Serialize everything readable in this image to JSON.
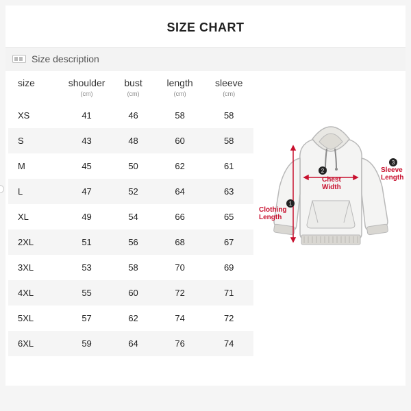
{
  "title": "SIZE CHART",
  "subhead": "Size description",
  "table": {
    "columns": [
      {
        "key": "size",
        "label": "size",
        "unit": ""
      },
      {
        "key": "shoulder",
        "label": "shoulder",
        "unit": "(cm)"
      },
      {
        "key": "bust",
        "label": "bust",
        "unit": "(cm)"
      },
      {
        "key": "length",
        "label": "length",
        "unit": "(cm)"
      },
      {
        "key": "sleeve",
        "label": "sleeve",
        "unit": "(cm)"
      }
    ],
    "rows": [
      {
        "size": "XS",
        "shoulder": "41",
        "bust": "46",
        "length": "58",
        "sleeve": "58"
      },
      {
        "size": "S",
        "shoulder": "43",
        "bust": "48",
        "length": "60",
        "sleeve": "58"
      },
      {
        "size": "M",
        "shoulder": "45",
        "bust": "50",
        "length": "62",
        "sleeve": "61"
      },
      {
        "size": "L",
        "shoulder": "47",
        "bust": "52",
        "length": "64",
        "sleeve": "63"
      },
      {
        "size": "XL",
        "shoulder": "49",
        "bust": "54",
        "length": "66",
        "sleeve": "65"
      },
      {
        "size": "2XL",
        "shoulder": "51",
        "bust": "56",
        "length": "68",
        "sleeve": "67"
      },
      {
        "size": "3XL",
        "shoulder": "53",
        "bust": "58",
        "length": "70",
        "sleeve": "69"
      },
      {
        "size": "4XL",
        "shoulder": "55",
        "bust": "60",
        "length": "72",
        "sleeve": "71"
      },
      {
        "size": "5XL",
        "shoulder": "57",
        "bust": "62",
        "length": "74",
        "sleeve": "72"
      },
      {
        "size": "6XL",
        "shoulder": "59",
        "bust": "64",
        "length": "76",
        "sleeve": "74"
      }
    ],
    "stripe_color": "#f5f5f5",
    "text_color": "#222222"
  },
  "diagram": {
    "labels": {
      "chest": "Chest\nWidth",
      "sleeve": "Sleeve\nLength",
      "length": "Clothing\nLength"
    },
    "bullets": [
      "1",
      "2",
      "3"
    ],
    "garment": {
      "body_fill": "#f4f4f3",
      "body_stroke": "#b9b9b9",
      "rib_fill": "#d9d7d2",
      "hood_fill": "#e9e8e4",
      "cord_color": "#8a8a8a",
      "arrow_color": "#c8102e"
    }
  }
}
